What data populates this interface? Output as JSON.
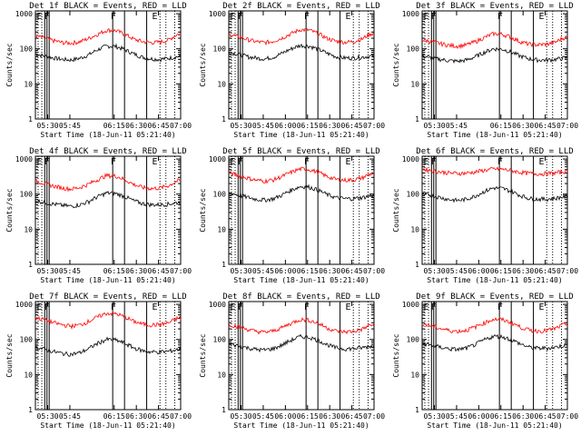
{
  "colors": {
    "events": "#000000",
    "lld": "#ff0000",
    "axis": "#000000",
    "background": "#ffffff"
  },
  "common": {
    "ylabel": "Counts/sec",
    "xlabel": "Start Time (18-Jun-11 05:21:40)",
    "x_ticks_wide": [
      "05:30",
      "05:45",
      "06:00",
      "06:15",
      "06:30",
      "06:45",
      "07:00"
    ],
    "x_ticks_tight": [
      "05:30",
      "05:45",
      "06:15",
      "06:30",
      "06:45",
      "07:00"
    ],
    "y_ticks": [
      "1",
      "10",
      "100",
      "1000"
    ],
    "ylim": [
      1,
      1200
    ],
    "xlim_minutes_after_05_00": [
      21.67,
      120
    ],
    "marker_labels": {
      "E": "E",
      "F": "F"
    }
  },
  "chart_data": [
    {
      "type": "line",
      "title": "Det 1f BLACK = Events, RED = LLD",
      "x_ticks": "tight",
      "yscale": "log",
      "series": [
        {
          "name": "Events",
          "color": "#000000",
          "x": [
            22,
            28,
            34,
            40,
            46,
            52,
            58,
            64,
            70,
            76,
            82,
            88,
            94,
            100,
            106,
            112,
            118
          ],
          "values": [
            70,
            62,
            55,
            50,
            48,
            54,
            68,
            95,
            120,
            118,
            95,
            72,
            58,
            52,
            50,
            54,
            60
          ]
        },
        {
          "name": "LLD",
          "color": "#ff0000",
          "x": [
            22,
            28,
            34,
            40,
            46,
            52,
            58,
            64,
            70,
            76,
            82,
            88,
            94,
            100,
            106,
            112,
            118
          ],
          "values": [
            230,
            200,
            170,
            150,
            145,
            160,
            200,
            260,
            340,
            330,
            260,
            190,
            160,
            150,
            155,
            180,
            260
          ]
        }
      ],
      "markers": [
        {
          "label": "E",
          "x": 22
        },
        {
          "label": "F",
          "x": 27
        },
        {
          "label": "F",
          "x": 72
        },
        {
          "label": "E",
          "x": 100
        }
      ]
    },
    {
      "type": "line",
      "title": "Det 2f BLACK = Events, RED = LLD",
      "x_ticks": "wide",
      "yscale": "log",
      "series": [
        {
          "name": "Events",
          "color": "#000000",
          "x": [
            22,
            28,
            34,
            40,
            46,
            52,
            58,
            64,
            70,
            76,
            82,
            88,
            94,
            100,
            106,
            112,
            118
          ],
          "values": [
            80,
            70,
            60,
            55,
            52,
            58,
            75,
            100,
            125,
            120,
            98,
            75,
            60,
            55,
            55,
            58,
            62
          ]
        },
        {
          "name": "LLD",
          "color": "#ff0000",
          "x": [
            22,
            28,
            34,
            40,
            46,
            52,
            58,
            64,
            70,
            76,
            82,
            88,
            94,
            100,
            106,
            112,
            118
          ],
          "values": [
            260,
            220,
            185,
            160,
            150,
            165,
            205,
            270,
            350,
            340,
            270,
            200,
            165,
            155,
            160,
            190,
            270
          ]
        }
      ],
      "markers": [
        {
          "label": "E",
          "x": 22
        },
        {
          "label": "F",
          "x": 27
        },
        {
          "label": "F",
          "x": 72
        },
        {
          "label": "E",
          "x": 100
        }
      ]
    },
    {
      "type": "line",
      "title": "Det 3f BLACK = Events, RED = LLD",
      "x_ticks": "tight",
      "yscale": "log",
      "series": [
        {
          "name": "Events",
          "color": "#000000",
          "x": [
            22,
            28,
            34,
            40,
            46,
            52,
            58,
            64,
            70,
            76,
            82,
            88,
            94,
            100,
            106,
            112,
            118
          ],
          "values": [
            62,
            55,
            50,
            46,
            44,
            48,
            60,
            80,
            100,
            98,
            80,
            62,
            52,
            48,
            48,
            50,
            55
          ]
        },
        {
          "name": "LLD",
          "color": "#ff0000",
          "x": [
            22,
            28,
            34,
            40,
            46,
            52,
            58,
            64,
            70,
            76,
            82,
            88,
            94,
            100,
            106,
            112,
            118
          ],
          "values": [
            180,
            160,
            140,
            125,
            120,
            130,
            160,
            210,
            270,
            260,
            210,
            160,
            135,
            130,
            135,
            155,
            210
          ]
        }
      ],
      "markers": [
        {
          "label": "E",
          "x": 22
        },
        {
          "label": "F",
          "x": 27
        },
        {
          "label": "F",
          "x": 72
        },
        {
          "label": "E",
          "x": 100
        }
      ]
    },
    {
      "type": "line",
      "title": "Det 4f BLACK = Events, RED = LLD",
      "x_ticks": "tight",
      "yscale": "log",
      "series": [
        {
          "name": "Events",
          "color": "#000000",
          "x": [
            22,
            28,
            34,
            40,
            46,
            52,
            58,
            64,
            70,
            76,
            82,
            88,
            94,
            100,
            106,
            112,
            118
          ],
          "values": [
            65,
            58,
            52,
            48,
            45,
            50,
            62,
            85,
            108,
            105,
            85,
            65,
            54,
            50,
            50,
            52,
            58
          ]
        },
        {
          "name": "LLD",
          "color": "#ff0000",
          "x": [
            22,
            28,
            34,
            40,
            46,
            52,
            58,
            64,
            70,
            76,
            82,
            88,
            94,
            100,
            106,
            112,
            118
          ],
          "values": [
            240,
            200,
            170,
            150,
            140,
            155,
            195,
            260,
            340,
            330,
            260,
            190,
            155,
            145,
            150,
            175,
            240
          ]
        }
      ],
      "markers": [
        {
          "label": "E",
          "x": 22
        },
        {
          "label": "F",
          "x": 27
        },
        {
          "label": "F",
          "x": 72
        },
        {
          "label": "E",
          "x": 100
        }
      ]
    },
    {
      "type": "line",
      "title": "Det 5f BLACK = Events, RED = LLD",
      "x_ticks": "wide",
      "yscale": "log",
      "series": [
        {
          "name": "Events",
          "color": "#000000",
          "x": [
            22,
            28,
            34,
            40,
            46,
            52,
            58,
            64,
            70,
            76,
            82,
            88,
            94,
            100,
            106,
            112,
            118
          ],
          "values": [
            110,
            95,
            82,
            72,
            68,
            74,
            95,
            130,
            165,
            160,
            130,
            98,
            80,
            74,
            75,
            80,
            90
          ]
        },
        {
          "name": "LLD",
          "color": "#ff0000",
          "x": [
            22,
            28,
            34,
            40,
            46,
            52,
            58,
            64,
            70,
            76,
            82,
            88,
            94,
            100,
            106,
            112,
            118
          ],
          "values": [
            400,
            340,
            290,
            250,
            235,
            255,
            320,
            420,
            520,
            505,
            420,
            320,
            265,
            250,
            255,
            290,
            380
          ]
        }
      ],
      "markers": [
        {
          "label": "E",
          "x": 22
        },
        {
          "label": "F",
          "x": 27
        },
        {
          "label": "F",
          "x": 72
        },
        {
          "label": "E",
          "x": 100
        }
      ]
    },
    {
      "type": "line",
      "title": "Det 6f BLACK = Events, RED = LLD",
      "x_ticks": "wide",
      "yscale": "log",
      "series": [
        {
          "name": "Events",
          "color": "#000000",
          "x": [
            22,
            28,
            34,
            40,
            46,
            52,
            58,
            64,
            70,
            76,
            82,
            88,
            94,
            100,
            106,
            112,
            118
          ],
          "values": [
            105,
            92,
            80,
            70,
            66,
            72,
            90,
            120,
            150,
            145,
            120,
            92,
            76,
            72,
            72,
            76,
            85
          ]
        },
        {
          "name": "LLD",
          "color": "#ff0000",
          "x": [
            22,
            28,
            34,
            40,
            46,
            52,
            58,
            64,
            70,
            76,
            82,
            88,
            94,
            100,
            106,
            112,
            118
          ],
          "values": [
            520,
            470,
            430,
            400,
            390,
            400,
            430,
            480,
            520,
            510,
            470,
            420,
            390,
            380,
            385,
            400,
            440
          ]
        }
      ],
      "markers": [
        {
          "label": "E",
          "x": 22
        },
        {
          "label": "F",
          "x": 27
        },
        {
          "label": "F",
          "x": 72
        },
        {
          "label": "E",
          "x": 100
        }
      ]
    },
    {
      "type": "line",
      "title": "Det 7f BLACK = Events, RED = LLD",
      "x_ticks": "tight",
      "yscale": "log",
      "series": [
        {
          "name": "Events",
          "color": "#000000",
          "x": [
            22,
            28,
            34,
            40,
            46,
            52,
            58,
            64,
            70,
            76,
            82,
            88,
            94,
            100,
            106,
            112,
            118
          ],
          "values": [
            60,
            52,
            45,
            40,
            38,
            42,
            55,
            78,
            100,
            96,
            78,
            58,
            48,
            44,
            44,
            46,
            52
          ]
        },
        {
          "name": "LLD",
          "color": "#ff0000",
          "x": [
            22,
            28,
            34,
            40,
            46,
            52,
            58,
            64,
            70,
            76,
            82,
            88,
            94,
            100,
            106,
            112,
            118
          ],
          "values": [
            420,
            360,
            300,
            260,
            240,
            260,
            330,
            440,
            560,
            540,
            440,
            330,
            275,
            260,
            265,
            300,
            400
          ]
        }
      ],
      "markers": [
        {
          "label": "E",
          "x": 22
        },
        {
          "label": "F",
          "x": 27
        },
        {
          "label": "F",
          "x": 72
        },
        {
          "label": "E",
          "x": 100
        }
      ]
    },
    {
      "type": "line",
      "title": "Det 8f BLACK = Events, RED = LLD",
      "x_ticks": "wide",
      "yscale": "log",
      "series": [
        {
          "name": "Events",
          "color": "#000000",
          "x": [
            22,
            28,
            34,
            40,
            46,
            52,
            58,
            64,
            70,
            76,
            82,
            88,
            94,
            100,
            106,
            112,
            118
          ],
          "values": [
            75,
            66,
            58,
            52,
            50,
            55,
            70,
            95,
            120,
            116,
            95,
            72,
            58,
            54,
            55,
            58,
            65
          ]
        },
        {
          "name": "LLD",
          "color": "#ff0000",
          "x": [
            22,
            28,
            34,
            40,
            46,
            52,
            58,
            64,
            70,
            76,
            82,
            88,
            94,
            100,
            106,
            112,
            118
          ],
          "values": [
            270,
            230,
            195,
            170,
            160,
            175,
            220,
            290,
            370,
            355,
            290,
            215,
            175,
            165,
            170,
            195,
            260
          ]
        }
      ],
      "markers": [
        {
          "label": "E",
          "x": 22
        },
        {
          "label": "F",
          "x": 27
        },
        {
          "label": "F",
          "x": 72
        },
        {
          "label": "E",
          "x": 100
        }
      ]
    },
    {
      "type": "line",
      "title": "Det 9f BLACK = Events, RED = LLD",
      "x_ticks": "wide",
      "yscale": "log",
      "series": [
        {
          "name": "Events",
          "color": "#000000",
          "x": [
            22,
            28,
            34,
            40,
            46,
            52,
            58,
            64,
            70,
            76,
            82,
            88,
            94,
            100,
            106,
            112,
            118
          ],
          "values": [
            78,
            68,
            60,
            54,
            52,
            57,
            72,
            98,
            124,
            120,
            98,
            75,
            60,
            56,
            57,
            60,
            68
          ]
        },
        {
          "name": "LLD",
          "color": "#ff0000",
          "x": [
            22,
            28,
            34,
            40,
            46,
            52,
            58,
            64,
            70,
            76,
            82,
            88,
            94,
            100,
            106,
            112,
            118
          ],
          "values": [
            280,
            240,
            205,
            180,
            170,
            185,
            230,
            300,
            380,
            365,
            300,
            225,
            185,
            175,
            180,
            205,
            270
          ]
        }
      ],
      "markers": [
        {
          "label": "E",
          "x": 22
        },
        {
          "label": "F",
          "x": 27
        },
        {
          "label": "F",
          "x": 72
        },
        {
          "label": "E",
          "x": 100
        }
      ]
    }
  ]
}
